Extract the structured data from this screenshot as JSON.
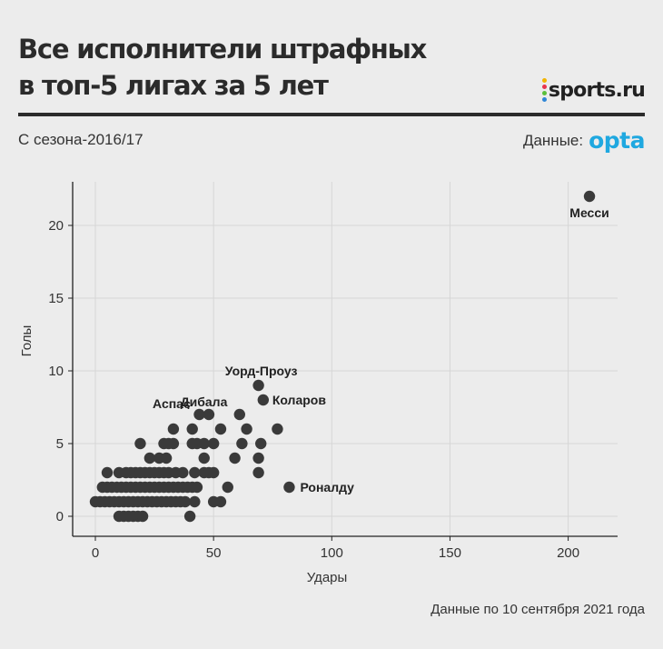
{
  "header": {
    "title": "Все исполнители штрафных\nв топ-5 лигах за 5 лет",
    "subtitle": "С сезона-2016/17",
    "source_prefix": "Данные:",
    "source_brand": "opta",
    "brand": "sports.ru"
  },
  "footer": {
    "note": "Данные по 10 сентября 2021 года"
  },
  "colors": {
    "points": "#3a3a3a",
    "opta": "#1fa8e0",
    "brand_dots": [
      "#f2b400",
      "#e8344e",
      "#5bbf3c",
      "#2f86d6"
    ]
  },
  "chart_data": {
    "type": "scatter",
    "title": "Все исполнители штрафных в топ-5 лигах за 5 лет",
    "xlabel": "Удары",
    "ylabel": "Голы",
    "xlim": [
      -10,
      220
    ],
    "ylim": [
      -1.3,
      23
    ],
    "xticks": [
      0,
      50,
      100,
      150,
      200
    ],
    "yticks": [
      0,
      5,
      10,
      15,
      20
    ],
    "grid": true,
    "points": [
      {
        "x": 209,
        "y": 22,
        "label": "Месси"
      },
      {
        "x": 69,
        "y": 9,
        "label": "Уорд-Проуз"
      },
      {
        "x": 71,
        "y": 8,
        "label": "Коларов"
      },
      {
        "x": 44,
        "y": 7,
        "label": "Дибала"
      },
      {
        "x": 33,
        "y": 6,
        "label": "Аспас"
      },
      {
        "x": 82,
        "y": 2,
        "label": "Роналду"
      },
      {
        "x": 48,
        "y": 7
      },
      {
        "x": 61,
        "y": 7
      },
      {
        "x": 41,
        "y": 6
      },
      {
        "x": 53,
        "y": 6
      },
      {
        "x": 64,
        "y": 6
      },
      {
        "x": 77,
        "y": 6
      },
      {
        "x": 19,
        "y": 5
      },
      {
        "x": 29,
        "y": 5
      },
      {
        "x": 31,
        "y": 5
      },
      {
        "x": 33,
        "y": 5
      },
      {
        "x": 41,
        "y": 5
      },
      {
        "x": 43,
        "y": 5
      },
      {
        "x": 46,
        "y": 5
      },
      {
        "x": 50,
        "y": 5
      },
      {
        "x": 62,
        "y": 5
      },
      {
        "x": 70,
        "y": 5
      },
      {
        "x": 23,
        "y": 4
      },
      {
        "x": 27,
        "y": 4
      },
      {
        "x": 30,
        "y": 4
      },
      {
        "x": 46,
        "y": 4
      },
      {
        "x": 59,
        "y": 4
      },
      {
        "x": 69,
        "y": 4
      },
      {
        "x": 5,
        "y": 3
      },
      {
        "x": 10,
        "y": 3
      },
      {
        "x": 13,
        "y": 3
      },
      {
        "x": 15,
        "y": 3
      },
      {
        "x": 17,
        "y": 3
      },
      {
        "x": 19,
        "y": 3
      },
      {
        "x": 21,
        "y": 3
      },
      {
        "x": 23,
        "y": 3
      },
      {
        "x": 25,
        "y": 3
      },
      {
        "x": 27,
        "y": 3
      },
      {
        "x": 29,
        "y": 3
      },
      {
        "x": 31,
        "y": 3
      },
      {
        "x": 34,
        "y": 3
      },
      {
        "x": 37,
        "y": 3
      },
      {
        "x": 42,
        "y": 3
      },
      {
        "x": 46,
        "y": 3
      },
      {
        "x": 48,
        "y": 3
      },
      {
        "x": 50,
        "y": 3
      },
      {
        "x": 69,
        "y": 3
      },
      {
        "x": 3,
        "y": 2
      },
      {
        "x": 5,
        "y": 2
      },
      {
        "x": 7,
        "y": 2
      },
      {
        "x": 9,
        "y": 2
      },
      {
        "x": 11,
        "y": 2
      },
      {
        "x": 13,
        "y": 2
      },
      {
        "x": 15,
        "y": 2
      },
      {
        "x": 17,
        "y": 2
      },
      {
        "x": 19,
        "y": 2
      },
      {
        "x": 21,
        "y": 2
      },
      {
        "x": 23,
        "y": 2
      },
      {
        "x": 25,
        "y": 2
      },
      {
        "x": 27,
        "y": 2
      },
      {
        "x": 29,
        "y": 2
      },
      {
        "x": 31,
        "y": 2
      },
      {
        "x": 33,
        "y": 2
      },
      {
        "x": 35,
        "y": 2
      },
      {
        "x": 37,
        "y": 2
      },
      {
        "x": 39,
        "y": 2
      },
      {
        "x": 41,
        "y": 2
      },
      {
        "x": 43,
        "y": 2
      },
      {
        "x": 56,
        "y": 2
      },
      {
        "x": 0,
        "y": 1
      },
      {
        "x": 2,
        "y": 1
      },
      {
        "x": 4,
        "y": 1
      },
      {
        "x": 6,
        "y": 1
      },
      {
        "x": 8,
        "y": 1
      },
      {
        "x": 10,
        "y": 1
      },
      {
        "x": 12,
        "y": 1
      },
      {
        "x": 14,
        "y": 1
      },
      {
        "x": 16,
        "y": 1
      },
      {
        "x": 18,
        "y": 1
      },
      {
        "x": 20,
        "y": 1
      },
      {
        "x": 22,
        "y": 1
      },
      {
        "x": 24,
        "y": 1
      },
      {
        "x": 26,
        "y": 1
      },
      {
        "x": 28,
        "y": 1
      },
      {
        "x": 30,
        "y": 1
      },
      {
        "x": 32,
        "y": 1
      },
      {
        "x": 34,
        "y": 1
      },
      {
        "x": 36,
        "y": 1
      },
      {
        "x": 38,
        "y": 1
      },
      {
        "x": 42,
        "y": 1
      },
      {
        "x": 50,
        "y": 1
      },
      {
        "x": 53,
        "y": 1
      },
      {
        "x": 10,
        "y": 0
      },
      {
        "x": 12,
        "y": 0
      },
      {
        "x": 14,
        "y": 0
      },
      {
        "x": 16,
        "y": 0
      },
      {
        "x": 18,
        "y": 0
      },
      {
        "x": 20,
        "y": 0
      },
      {
        "x": 40,
        "y": 0
      }
    ]
  }
}
